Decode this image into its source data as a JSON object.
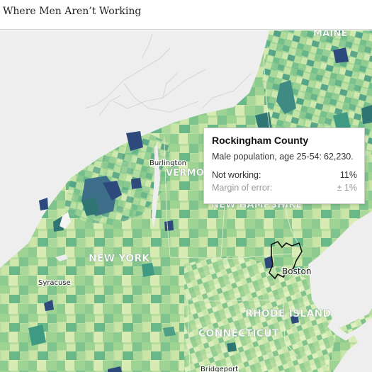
{
  "header": {
    "title": "Where Men Aren’t Working"
  },
  "map": {
    "state_labels": {
      "maine": "MAINE",
      "vermont": "VERMONT",
      "new_hampshire": "NEW HAMPSHIRE",
      "new_york": "NEW YORK",
      "rhode_island": "RHODE ISLAND",
      "connecticut": "CONNECTICUT"
    },
    "city_labels": {
      "burlington": "Burlington",
      "syracuse": "Syracuse",
      "boston": "Boston",
      "bridgeport": "Bridgeport"
    },
    "highlighted_county": "Rockingham County",
    "colors": {
      "land_light": "#e9f2c9",
      "low": "#cfe8ad",
      "mid": "#9fd394",
      "high": "#67b98a",
      "higher": "#3f9a83",
      "dark_teal": "#2f7573",
      "navy": "#2e4a7d",
      "background": "#eeeeee",
      "highlight_outline": "#111111"
    }
  },
  "tooltip": {
    "county": "Rockingham County",
    "population_label": "Male population, age 25-54:",
    "population_value": "62,230.",
    "not_working_label": "Not working:",
    "not_working_value": "11%",
    "moe_label": "Margin of error:",
    "moe_value": "± 1%"
  }
}
